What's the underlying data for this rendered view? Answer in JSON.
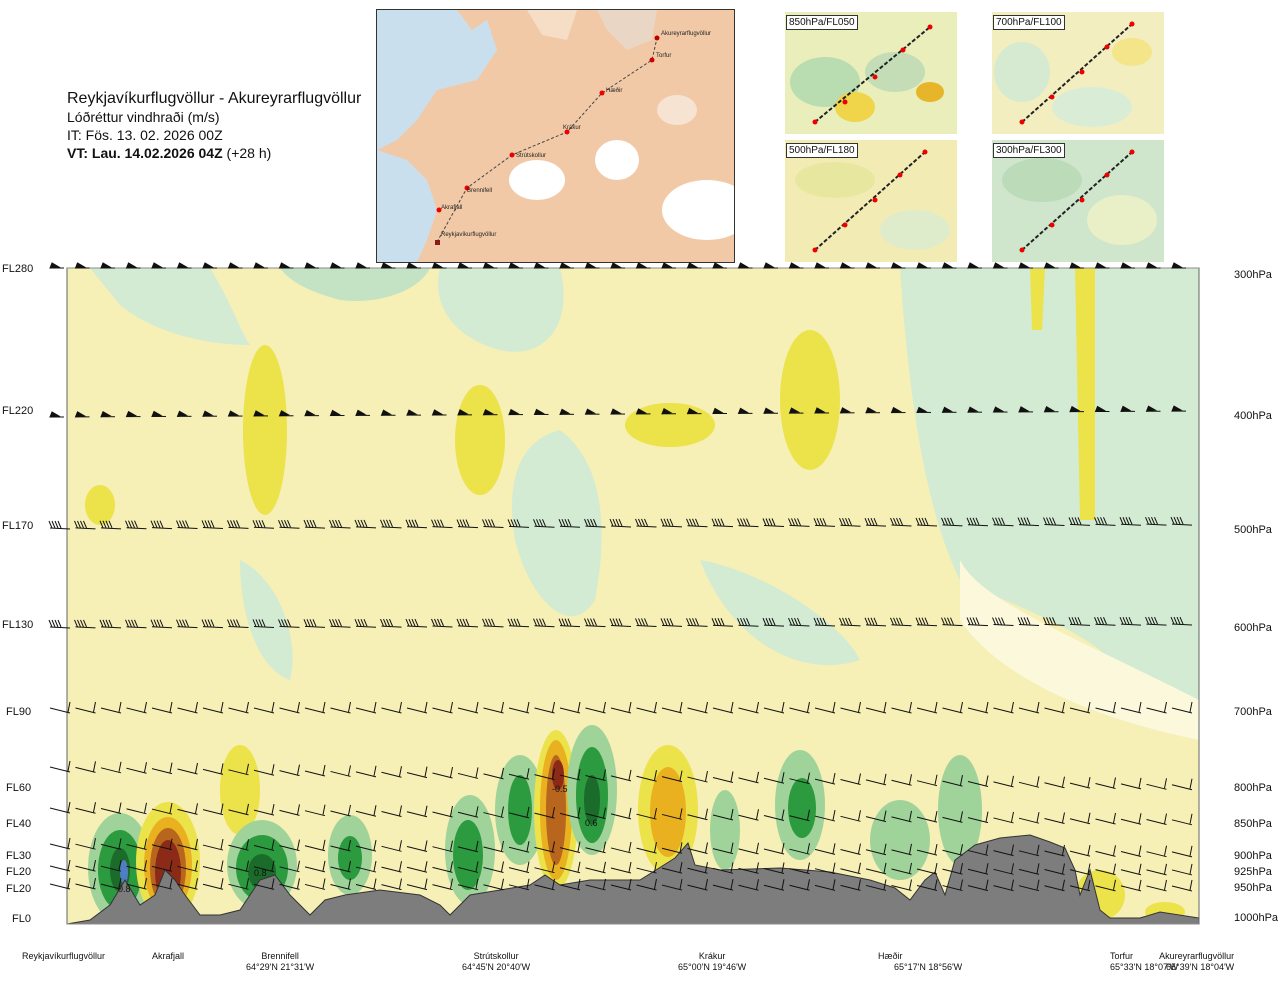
{
  "title": {
    "route": "Reykjavíkurflugvöllur - Akureyrarflugvöllur",
    "parameter": "Lóðréttur vindhraði (m/s)",
    "issue_time": "IT: Fös. 13. 02. 2026 00Z",
    "valid_time": "VT: Lau. 14.02.2026 04Z",
    "lead": "(+28 h)"
  },
  "route_map": {
    "waypoints": [
      "Akureyrarflugvöllur",
      "Torfur",
      "Hæðir",
      "Krákur",
      "Strútskollur",
      "Brennifell",
      "Akrafjall",
      "Reykjavíkurflugvöllur"
    ]
  },
  "insets": [
    {
      "label": "850hPa/FL050"
    },
    {
      "label": "700hPa/FL100"
    },
    {
      "label": "500hPa/FL180"
    },
    {
      "label": "300hPa/FL300"
    }
  ],
  "chart_data": {
    "type": "heatmap",
    "title": "Lóðréttur vindhraði (m/s)",
    "flight_levels": [
      "FL280",
      "FL220",
      "FL170",
      "FL130",
      "FL90",
      "FL60",
      "FL40",
      "FL30",
      "FL20",
      "FL20",
      "FL0"
    ],
    "pressure_levels": [
      "300hPa",
      "400hPa",
      "500hPa",
      "600hPa",
      "700hPa",
      "800hPa",
      "850hPa",
      "900hPa",
      "925hPa",
      "950hPa",
      "1000hPa"
    ],
    "waypoints": [
      {
        "name": "Reykjavíkurflugvöllur",
        "coord": ""
      },
      {
        "name": "Akrafjall",
        "coord": ""
      },
      {
        "name": "Brennifell",
        "coord": "64°29'N 21°31'W"
      },
      {
        "name": "Strútskollur",
        "coord": "64°45'N 20°40'W"
      },
      {
        "name": "Krákur",
        "coord": "65°00'N 19°46'W"
      },
      {
        "name": "Hæðir",
        "coord": "65°17'N 18°56'W"
      },
      {
        "name": "Torfur",
        "coord": "65°33'N 18°07'W"
      },
      {
        "name": "Akureyrarflugvöllur",
        "coord": "65°39'N 18°04'W"
      }
    ],
    "contour_labels": [
      "0.8",
      "0.8",
      "-0.5",
      "0.6"
    ],
    "colors": {
      "strong_up_dark": "#1b6b2b",
      "up_green": "#2c9a3e",
      "up_light": "#9fd39a",
      "up_pale": "#cfead0",
      "neutral": "#f8f0b8",
      "pale_yellow": "#fbf8dc",
      "down_yellow": "#ece24a",
      "down_orange": "#e9b020",
      "down_brown": "#b8651e",
      "down_dark": "#8b2a16",
      "terrain": "#7d7d7d"
    }
  }
}
